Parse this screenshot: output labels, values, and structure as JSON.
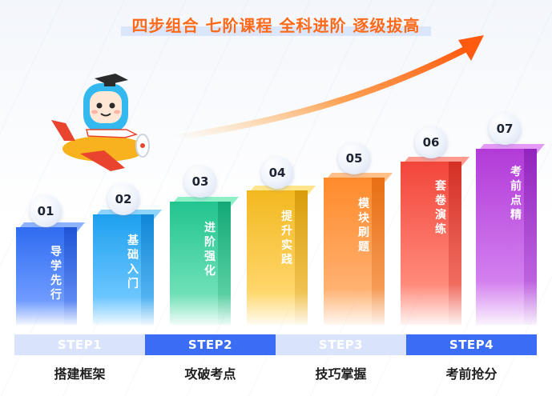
{
  "headline": "四步组合 七阶课程 全科进阶 逐级拔高",
  "colors": {
    "accent": "#ff6a1a",
    "step_dark": "#3a6cf4",
    "step_light": "#d9e4fc"
  },
  "bars": [
    {
      "num": "01",
      "label": "导学先行",
      "color": "#2f6cf2"
    },
    {
      "num": "02",
      "label": "基础入门",
      "color": "#1ea0ee"
    },
    {
      "num": "03",
      "label": "进阶强化",
      "color": "#22c48f"
    },
    {
      "num": "04",
      "label": "提升实践",
      "color": "#f2b81f"
    },
    {
      "num": "05",
      "label": "模块刷题",
      "color": "#ff8a2a"
    },
    {
      "num": "06",
      "label": "套卷演练",
      "color": "#f2453a"
    },
    {
      "num": "07",
      "label": "考前点精",
      "color": "#b23ad8"
    }
  ],
  "steps": [
    {
      "label": "STEP1",
      "caption": "搭建框架",
      "style": "light"
    },
    {
      "label": "STEP2",
      "caption": "攻破考点",
      "style": "dark"
    },
    {
      "label": "STEP3",
      "caption": "技巧掌握",
      "style": "light"
    },
    {
      "label": "STEP4",
      "caption": "考前抢分",
      "style": "dark"
    }
  ],
  "icons": [
    "growth-arrow-icon",
    "mascot-airplane-icon"
  ]
}
